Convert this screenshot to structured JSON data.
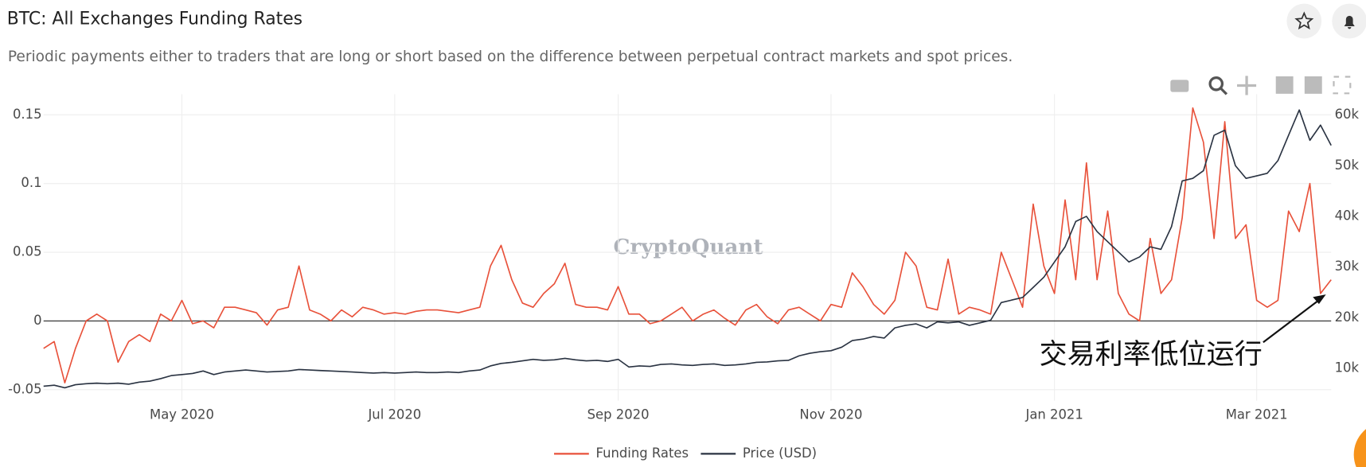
{
  "header": {
    "title": "BTC: All Exchanges Funding Rates",
    "subtitle": "Periodic payments either to traders that are long or short based on the difference between perpetual contract markets and spot prices."
  },
  "chart_data": {
    "type": "line",
    "watermark": "CryptoQuant",
    "annotation": "交易利率低位运行",
    "categories": [
      null,
      null,
      null,
      null,
      null,
      null,
      null,
      null,
      null,
      null,
      null,
      null,
      null,
      "May 2020",
      null,
      null,
      null,
      null,
      null,
      null,
      null,
      null,
      null,
      null,
      null,
      null,
      null,
      null,
      null,
      null,
      null,
      null,
      null,
      "Jul 2020",
      null,
      null,
      null,
      null,
      null,
      null,
      null,
      null,
      null,
      null,
      null,
      null,
      null,
      null,
      null,
      null,
      null,
      null,
      null,
      null,
      "Sep 2020",
      null,
      null,
      null,
      null,
      null,
      null,
      null,
      null,
      null,
      null,
      null,
      null,
      null,
      null,
      null,
      null,
      null,
      null,
      null,
      "Nov 2020",
      null,
      null,
      null,
      null,
      null,
      null,
      null,
      null,
      null,
      null,
      null,
      null,
      null,
      null,
      null,
      null,
      null,
      null,
      null,
      null,
      "Jan 2021",
      null,
      null,
      null,
      null,
      null,
      null,
      null,
      null,
      null,
      null,
      null,
      null,
      null,
      null,
      null,
      null,
      null,
      null,
      "Mar 2021",
      null,
      null,
      null,
      null,
      null,
      null,
      null
    ],
    "series": [
      {
        "name": "Funding Rates",
        "color": "#e8513a",
        "axis": "y",
        "values": [
          -0.02,
          -0.015,
          -0.045,
          -0.02,
          0,
          0.005,
          0,
          -0.03,
          -0.015,
          -0.01,
          -0.015,
          0.005,
          0,
          0.015,
          -0.002,
          0,
          -0.005,
          0.01,
          0.01,
          0.008,
          0.006,
          -0.003,
          0.008,
          0.01,
          0.04,
          0.008,
          0.005,
          0,
          0.008,
          0.003,
          0.01,
          0.008,
          0.005,
          0.006,
          0.005,
          0.007,
          0.008,
          0.008,
          0.007,
          0.006,
          0.008,
          0.01,
          0.04,
          0.055,
          0.03,
          0.013,
          0.01,
          0.02,
          0.027,
          0.042,
          0.012,
          0.01,
          0.01,
          0.008,
          0.025,
          0.005,
          0.005,
          -0.002,
          0,
          0.005,
          0.01,
          0,
          0.005,
          0.008,
          0.002,
          -0.003,
          0.008,
          0.012,
          0.003,
          -0.002,
          0.008,
          0.01,
          0.005,
          0,
          0.012,
          0.01,
          0.035,
          0.025,
          0.012,
          0.005,
          0.015,
          0.05,
          0.04,
          0.01,
          0.008,
          0.045,
          0.005,
          0.01,
          0.008,
          0.005,
          0.05,
          0.03,
          0.01,
          0.085,
          0.04,
          0.02,
          0.088,
          0.03,
          0.115,
          0.03,
          0.08,
          0.02,
          0.005,
          0,
          0.06,
          0.02,
          0.03,
          0.075,
          0.155,
          0.13,
          0.06,
          0.145,
          0.06,
          0.07,
          0.015,
          0.01,
          0.015,
          0.08,
          0.065,
          0.1,
          0.02,
          0.03
        ]
      },
      {
        "name": "Price (USD)",
        "color": "#2a3342",
        "axis": "y2",
        "values": [
          6500,
          6700,
          6200,
          6800,
          7000,
          7100,
          7000,
          7100,
          6900,
          7300,
          7500,
          8000,
          8600,
          8800,
          9000,
          9500,
          8800,
          9300,
          9500,
          9700,
          9500,
          9300,
          9400,
          9500,
          9800,
          9700,
          9600,
          9500,
          9400,
          9300,
          9200,
          9100,
          9200,
          9100,
          9200,
          9300,
          9200,
          9200,
          9300,
          9200,
          9500,
          9700,
          10500,
          11000,
          11200,
          11500,
          11800,
          11600,
          11700,
          12000,
          11700,
          11500,
          11600,
          11400,
          11800,
          10300,
          10500,
          10400,
          10800,
          10900,
          10700,
          10600,
          10800,
          10900,
          10600,
          10700,
          10900,
          11200,
          11300,
          11500,
          11600,
          12500,
          13000,
          13300,
          13500,
          14200,
          15500,
          15800,
          16300,
          16000,
          18000,
          18500,
          18800,
          18000,
          19200,
          19000,
          19200,
          18500,
          19000,
          19500,
          23000,
          23500,
          24000,
          26000,
          28000,
          31000,
          34000,
          39000,
          40000,
          37000,
          35000,
          33000,
          31000,
          32000,
          34000,
          33500,
          38000,
          47000,
          47500,
          49000,
          56000,
          57000,
          50000,
          47500,
          48000,
          48500,
          51000,
          56000,
          61000,
          55000,
          58000,
          54000
        ]
      }
    ],
    "ylim": [
      -0.058,
      0.165
    ],
    "yticks": [
      -0.05,
      0,
      0.05,
      0.1,
      0.15
    ],
    "y2lim": [
      3650,
      64100
    ],
    "y2ticks": [
      {
        "value": 10000,
        "label": "10k"
      },
      {
        "value": 20000,
        "label": "20k"
      },
      {
        "value": 30000,
        "label": "30k"
      },
      {
        "value": 40000,
        "label": "40k"
      },
      {
        "value": 50000,
        "label": "50k"
      },
      {
        "value": 60000,
        "label": "60k"
      }
    ],
    "grid": true
  }
}
